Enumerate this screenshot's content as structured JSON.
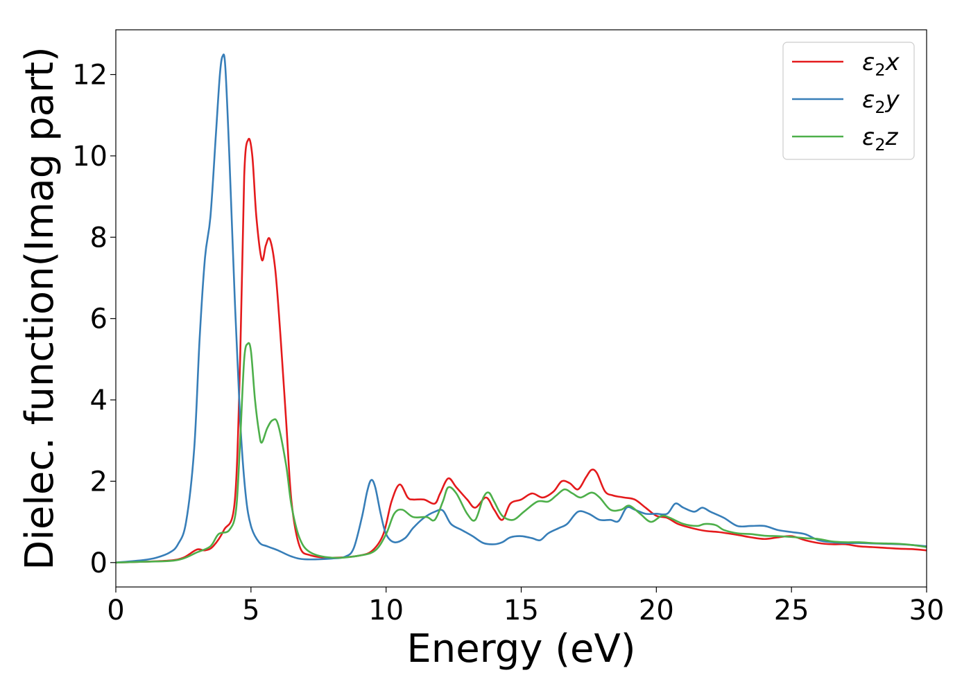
{
  "chart_data": {
    "type": "line",
    "title": "",
    "xlabel": "Energy (eV)",
    "ylabel": "Dielec. function(Imag part)",
    "xlim": [
      0,
      30
    ],
    "ylim": [
      -0.6,
      13.1
    ],
    "xticks": [
      0,
      5,
      10,
      15,
      20,
      25,
      30
    ],
    "yticks": [
      0,
      2,
      4,
      6,
      8,
      10,
      12
    ],
    "grid": false,
    "legend_position": "top-right",
    "series": [
      {
        "name": "ε2x",
        "legend_base": "ε",
        "legend_sub": "2",
        "legend_suffix": "x",
        "color": "#e41a1c",
        "points": [
          [
            0,
            0
          ],
          [
            1,
            0.02
          ],
          [
            2,
            0.05
          ],
          [
            2.5,
            0.12
          ],
          [
            3,
            0.32
          ],
          [
            3.3,
            0.3
          ],
          [
            3.6,
            0.4
          ],
          [
            4,
            0.8
          ],
          [
            4.4,
            1.5
          ],
          [
            4.6,
            5
          ],
          [
            4.75,
            9.5
          ],
          [
            4.9,
            10.4
          ],
          [
            5.05,
            10
          ],
          [
            5.2,
            8.5
          ],
          [
            5.4,
            7.45
          ],
          [
            5.55,
            7.8
          ],
          [
            5.7,
            7.95
          ],
          [
            5.9,
            7.2
          ],
          [
            6.1,
            5.5
          ],
          [
            6.3,
            3.5
          ],
          [
            6.5,
            1.5
          ],
          [
            6.8,
            0.4
          ],
          [
            7.2,
            0.18
          ],
          [
            8,
            0.12
          ],
          [
            9,
            0.17
          ],
          [
            9.5,
            0.3
          ],
          [
            9.9,
            0.7
          ],
          [
            10.2,
            1.5
          ],
          [
            10.5,
            1.92
          ],
          [
            10.8,
            1.6
          ],
          [
            11,
            1.55
          ],
          [
            11.4,
            1.55
          ],
          [
            11.8,
            1.45
          ],
          [
            12,
            1.7
          ],
          [
            12.3,
            2.07
          ],
          [
            12.6,
            1.85
          ],
          [
            13,
            1.55
          ],
          [
            13.3,
            1.35
          ],
          [
            13.7,
            1.6
          ],
          [
            14,
            1.3
          ],
          [
            14.3,
            1.05
          ],
          [
            14.6,
            1.45
          ],
          [
            15,
            1.55
          ],
          [
            15.4,
            1.7
          ],
          [
            15.8,
            1.6
          ],
          [
            16.2,
            1.75
          ],
          [
            16.5,
            2
          ],
          [
            16.8,
            1.95
          ],
          [
            17.1,
            1.8
          ],
          [
            17.4,
            2.1
          ],
          [
            17.6,
            2.28
          ],
          [
            17.8,
            2.2
          ],
          [
            18.1,
            1.75
          ],
          [
            18.4,
            1.65
          ],
          [
            18.8,
            1.6
          ],
          [
            19.2,
            1.55
          ],
          [
            19.6,
            1.35
          ],
          [
            20,
            1.15
          ],
          [
            20.4,
            1.1
          ],
          [
            20.8,
            0.95
          ],
          [
            21.3,
            0.85
          ],
          [
            21.8,
            0.78
          ],
          [
            22.3,
            0.75
          ],
          [
            23,
            0.68
          ],
          [
            23.5,
            0.62
          ],
          [
            24,
            0.58
          ],
          [
            24.5,
            0.62
          ],
          [
            25,
            0.65
          ],
          [
            25.5,
            0.55
          ],
          [
            26,
            0.48
          ],
          [
            26.5,
            0.45
          ],
          [
            27,
            0.45
          ],
          [
            27.5,
            0.4
          ],
          [
            28,
            0.38
          ],
          [
            28.5,
            0.36
          ],
          [
            29,
            0.34
          ],
          [
            29.5,
            0.33
          ],
          [
            30,
            0.3
          ]
        ]
      },
      {
        "name": "ε2y",
        "legend_base": "ε",
        "legend_sub": "2",
        "legend_suffix": "y",
        "color": "#377eb8",
        "points": [
          [
            0,
            0
          ],
          [
            1,
            0.06
          ],
          [
            1.5,
            0.12
          ],
          [
            2,
            0.25
          ],
          [
            2.3,
            0.45
          ],
          [
            2.6,
            1
          ],
          [
            2.9,
            2.8
          ],
          [
            3.1,
            5.5
          ],
          [
            3.3,
            7.5
          ],
          [
            3.5,
            8.5
          ],
          [
            3.7,
            10.5
          ],
          [
            3.85,
            12
          ],
          [
            3.95,
            12.45
          ],
          [
            4.05,
            12.2
          ],
          [
            4.2,
            10
          ],
          [
            4.4,
            6.5
          ],
          [
            4.6,
            3.5
          ],
          [
            4.8,
            1.7
          ],
          [
            5,
            0.9
          ],
          [
            5.3,
            0.5
          ],
          [
            5.6,
            0.4
          ],
          [
            6,
            0.3
          ],
          [
            6.5,
            0.15
          ],
          [
            7,
            0.08
          ],
          [
            8,
            0.1
          ],
          [
            8.5,
            0.15
          ],
          [
            8.8,
            0.35
          ],
          [
            9.1,
            1.1
          ],
          [
            9.3,
            1.75
          ],
          [
            9.45,
            2.03
          ],
          [
            9.6,
            1.85
          ],
          [
            9.8,
            1.2
          ],
          [
            10,
            0.7
          ],
          [
            10.3,
            0.5
          ],
          [
            10.7,
            0.6
          ],
          [
            11,
            0.85
          ],
          [
            11.4,
            1.1
          ],
          [
            11.8,
            1.25
          ],
          [
            12.1,
            1.28
          ],
          [
            12.4,
            0.95
          ],
          [
            12.8,
            0.8
          ],
          [
            13.2,
            0.65
          ],
          [
            13.6,
            0.48
          ],
          [
            14,
            0.45
          ],
          [
            14.3,
            0.5
          ],
          [
            14.6,
            0.62
          ],
          [
            15,
            0.65
          ],
          [
            15.4,
            0.6
          ],
          [
            15.7,
            0.55
          ],
          [
            16,
            0.72
          ],
          [
            16.4,
            0.85
          ],
          [
            16.7,
            0.95
          ],
          [
            17.1,
            1.25
          ],
          [
            17.5,
            1.2
          ],
          [
            17.9,
            1.05
          ],
          [
            18.3,
            1.05
          ],
          [
            18.6,
            1.02
          ],
          [
            18.9,
            1.35
          ],
          [
            19.2,
            1.3
          ],
          [
            19.6,
            1.2
          ],
          [
            20,
            1.2
          ],
          [
            20.4,
            1.2
          ],
          [
            20.7,
            1.45
          ],
          [
            21,
            1.35
          ],
          [
            21.4,
            1.25
          ],
          [
            21.7,
            1.35
          ],
          [
            22,
            1.25
          ],
          [
            22.5,
            1.1
          ],
          [
            23,
            0.9
          ],
          [
            23.5,
            0.9
          ],
          [
            24,
            0.9
          ],
          [
            24.5,
            0.8
          ],
          [
            25,
            0.75
          ],
          [
            25.5,
            0.7
          ],
          [
            26,
            0.55
          ],
          [
            26.5,
            0.5
          ],
          [
            27,
            0.48
          ],
          [
            27.5,
            0.48
          ],
          [
            28,
            0.47
          ],
          [
            28.5,
            0.46
          ],
          [
            29,
            0.45
          ],
          [
            29.5,
            0.43
          ],
          [
            30,
            0.4
          ]
        ]
      },
      {
        "name": "ε2z",
        "legend_base": "ε",
        "legend_sub": "2",
        "legend_suffix": "z",
        "color": "#4daf4a",
        "points": [
          [
            0,
            0
          ],
          [
            1,
            0.02
          ],
          [
            2,
            0.04
          ],
          [
            2.5,
            0.1
          ],
          [
            3,
            0.25
          ],
          [
            3.5,
            0.4
          ],
          [
            3.8,
            0.7
          ],
          [
            4.2,
            0.8
          ],
          [
            4.45,
            1.3
          ],
          [
            4.6,
            3
          ],
          [
            4.75,
            5
          ],
          [
            4.88,
            5.38
          ],
          [
            5,
            5.2
          ],
          [
            5.15,
            4
          ],
          [
            5.3,
            3.2
          ],
          [
            5.4,
            2.95
          ],
          [
            5.6,
            3.3
          ],
          [
            5.8,
            3.5
          ],
          [
            6,
            3.4
          ],
          [
            6.3,
            2.4
          ],
          [
            6.5,
            1.4
          ],
          [
            6.8,
            0.6
          ],
          [
            7.2,
            0.25
          ],
          [
            8,
            0.12
          ],
          [
            9,
            0.17
          ],
          [
            9.6,
            0.3
          ],
          [
            10,
            0.7
          ],
          [
            10.3,
            1.2
          ],
          [
            10.6,
            1.3
          ],
          [
            11,
            1.12
          ],
          [
            11.5,
            1.12
          ],
          [
            11.8,
            1.05
          ],
          [
            12.1,
            1.5
          ],
          [
            12.3,
            1.85
          ],
          [
            12.6,
            1.7
          ],
          [
            13,
            1.2
          ],
          [
            13.3,
            1.05
          ],
          [
            13.6,
            1.6
          ],
          [
            13.8,
            1.72
          ],
          [
            14,
            1.5
          ],
          [
            14.3,
            1.15
          ],
          [
            14.7,
            1.05
          ],
          [
            15.1,
            1.25
          ],
          [
            15.6,
            1.5
          ],
          [
            16,
            1.5
          ],
          [
            16.3,
            1.65
          ],
          [
            16.6,
            1.8
          ],
          [
            16.9,
            1.7
          ],
          [
            17.2,
            1.6
          ],
          [
            17.6,
            1.72
          ],
          [
            17.9,
            1.6
          ],
          [
            18.3,
            1.3
          ],
          [
            18.7,
            1.3
          ],
          [
            19,
            1.4
          ],
          [
            19.4,
            1.2
          ],
          [
            19.8,
            1
          ],
          [
            20.2,
            1.15
          ],
          [
            20.5,
            1.1
          ],
          [
            21,
            0.95
          ],
          [
            21.5,
            0.9
          ],
          [
            21.8,
            0.95
          ],
          [
            22.2,
            0.92
          ],
          [
            22.5,
            0.8
          ],
          [
            23,
            0.72
          ],
          [
            23.5,
            0.7
          ],
          [
            24,
            0.66
          ],
          [
            24.5,
            0.65
          ],
          [
            25,
            0.63
          ],
          [
            25.5,
            0.6
          ],
          [
            26,
            0.58
          ],
          [
            26.5,
            0.52
          ],
          [
            27,
            0.5
          ],
          [
            27.5,
            0.5
          ],
          [
            28,
            0.48
          ],
          [
            28.5,
            0.47
          ],
          [
            29,
            0.46
          ],
          [
            29.5,
            0.43
          ],
          [
            30,
            0.38
          ]
        ]
      }
    ]
  }
}
